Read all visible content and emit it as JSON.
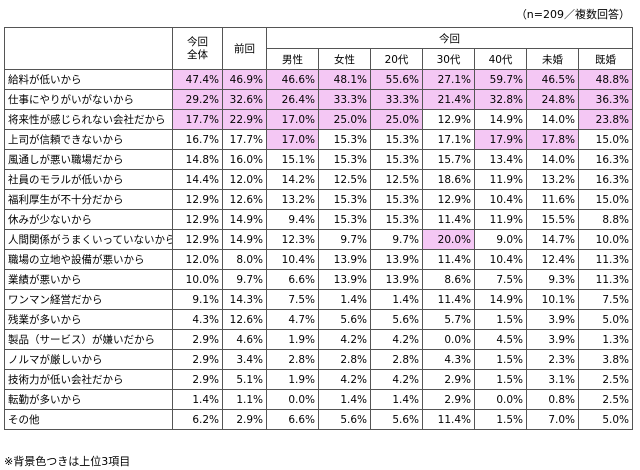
{
  "note_top": "（n=209／複数回答）",
  "note_bottom": "※背景色つきは上位3項目",
  "headers": {
    "current_total": "今回\n全体",
    "previous": "前回",
    "current_group": "今回",
    "segments": [
      "男性",
      "女性",
      "20代",
      "30代",
      "40代",
      "未婚",
      "既婚"
    ]
  },
  "highlight_color": "#f4c7f4",
  "rows": [
    {
      "label": "給料が低いから",
      "values": [
        "47.4%",
        "46.9%",
        "46.6%",
        "48.1%",
        "55.6%",
        "27.1%",
        "59.7%",
        "46.5%",
        "48.8%"
      ],
      "highlight": [
        true,
        true,
        true,
        true,
        true,
        true,
        true,
        true,
        true
      ]
    },
    {
      "label": "仕事にやりがいがないから",
      "values": [
        "29.2%",
        "32.6%",
        "26.4%",
        "33.3%",
        "33.3%",
        "21.4%",
        "32.8%",
        "24.8%",
        "36.3%"
      ],
      "highlight": [
        true,
        true,
        true,
        true,
        true,
        true,
        true,
        true,
        true
      ]
    },
    {
      "label": "将来性が感じられない会社だから",
      "values": [
        "17.7%",
        "22.9%",
        "17.0%",
        "25.0%",
        "25.0%",
        "12.9%",
        "14.9%",
        "14.0%",
        "23.8%"
      ],
      "highlight": [
        true,
        true,
        true,
        true,
        true,
        false,
        false,
        false,
        true
      ]
    },
    {
      "label": "上司が信頼できないから",
      "values": [
        "16.7%",
        "17.7%",
        "17.0%",
        "15.3%",
        "15.3%",
        "17.1%",
        "17.9%",
        "17.8%",
        "15.0%"
      ],
      "highlight": [
        false,
        false,
        true,
        false,
        false,
        false,
        true,
        true,
        false
      ]
    },
    {
      "label": "風通しが悪い職場だから",
      "values": [
        "14.8%",
        "16.0%",
        "15.1%",
        "15.3%",
        "15.3%",
        "15.7%",
        "13.4%",
        "14.0%",
        "16.3%"
      ],
      "highlight": [
        false,
        false,
        false,
        false,
        false,
        false,
        false,
        false,
        false
      ]
    },
    {
      "label": "社員のモラルが低いから",
      "values": [
        "14.4%",
        "12.0%",
        "14.2%",
        "12.5%",
        "12.5%",
        "18.6%",
        "11.9%",
        "13.2%",
        "16.3%"
      ],
      "highlight": [
        false,
        false,
        false,
        false,
        false,
        false,
        false,
        false,
        false
      ]
    },
    {
      "label": "福利厚生が不十分だから",
      "values": [
        "12.9%",
        "12.6%",
        "13.2%",
        "15.3%",
        "15.3%",
        "12.9%",
        "10.4%",
        "11.6%",
        "15.0%"
      ],
      "highlight": [
        false,
        false,
        false,
        false,
        false,
        false,
        false,
        false,
        false
      ]
    },
    {
      "label": "休みが少ないから",
      "values": [
        "12.9%",
        "14.9%",
        "9.4%",
        "15.3%",
        "15.3%",
        "11.4%",
        "11.9%",
        "15.5%",
        "8.8%"
      ],
      "highlight": [
        false,
        false,
        false,
        false,
        false,
        false,
        false,
        false,
        false
      ]
    },
    {
      "label": "人間関係がうまくいっていないから",
      "values": [
        "12.9%",
        "14.9%",
        "12.3%",
        "9.7%",
        "9.7%",
        "20.0%",
        "9.0%",
        "14.7%",
        "10.0%"
      ],
      "highlight": [
        false,
        false,
        false,
        false,
        false,
        true,
        false,
        false,
        false
      ]
    },
    {
      "label": "職場の立地や設備が悪いから",
      "values": [
        "12.0%",
        "8.0%",
        "10.4%",
        "13.9%",
        "13.9%",
        "11.4%",
        "10.4%",
        "12.4%",
        "11.3%"
      ],
      "highlight": [
        false,
        false,
        false,
        false,
        false,
        false,
        false,
        false,
        false
      ]
    },
    {
      "label": "業績が悪いから",
      "values": [
        "10.0%",
        "9.7%",
        "6.6%",
        "13.9%",
        "13.9%",
        "8.6%",
        "7.5%",
        "9.3%",
        "11.3%"
      ],
      "highlight": [
        false,
        false,
        false,
        false,
        false,
        false,
        false,
        false,
        false
      ]
    },
    {
      "label": "ワンマン経営だから",
      "values": [
        "9.1%",
        "14.3%",
        "7.5%",
        "1.4%",
        "1.4%",
        "11.4%",
        "14.9%",
        "10.1%",
        "7.5%"
      ],
      "highlight": [
        false,
        false,
        false,
        false,
        false,
        false,
        false,
        false,
        false
      ]
    },
    {
      "label": "残業が多いから",
      "values": [
        "4.3%",
        "12.6%",
        "4.7%",
        "5.6%",
        "5.6%",
        "5.7%",
        "1.5%",
        "3.9%",
        "5.0%"
      ],
      "highlight": [
        false,
        false,
        false,
        false,
        false,
        false,
        false,
        false,
        false
      ]
    },
    {
      "label": "製品（サービス）が嫌いだから",
      "values": [
        "2.9%",
        "4.6%",
        "1.9%",
        "4.2%",
        "4.2%",
        "0.0%",
        "4.5%",
        "3.9%",
        "1.3%"
      ],
      "highlight": [
        false,
        false,
        false,
        false,
        false,
        false,
        false,
        false,
        false
      ]
    },
    {
      "label": "ノルマが厳しいから",
      "values": [
        "2.9%",
        "3.4%",
        "2.8%",
        "2.8%",
        "2.8%",
        "4.3%",
        "1.5%",
        "2.3%",
        "3.8%"
      ],
      "highlight": [
        false,
        false,
        false,
        false,
        false,
        false,
        false,
        false,
        false
      ]
    },
    {
      "label": "技術力が低い会社だから",
      "values": [
        "2.9%",
        "5.1%",
        "1.9%",
        "4.2%",
        "4.2%",
        "2.9%",
        "1.5%",
        "3.1%",
        "2.5%"
      ],
      "highlight": [
        false,
        false,
        false,
        false,
        false,
        false,
        false,
        false,
        false
      ]
    },
    {
      "label": "転勤が多いから",
      "values": [
        "1.4%",
        "1.1%",
        "0.0%",
        "1.4%",
        "1.4%",
        "2.9%",
        "0.0%",
        "0.8%",
        "2.5%"
      ],
      "highlight": [
        false,
        false,
        false,
        false,
        false,
        false,
        false,
        false,
        false
      ]
    },
    {
      "label": "その他",
      "values": [
        "6.2%",
        "2.9%",
        "6.6%",
        "5.6%",
        "5.6%",
        "11.4%",
        "1.5%",
        "7.0%",
        "5.0%"
      ],
      "highlight": [
        false,
        false,
        false,
        false,
        false,
        false,
        false,
        false,
        false
      ]
    }
  ]
}
